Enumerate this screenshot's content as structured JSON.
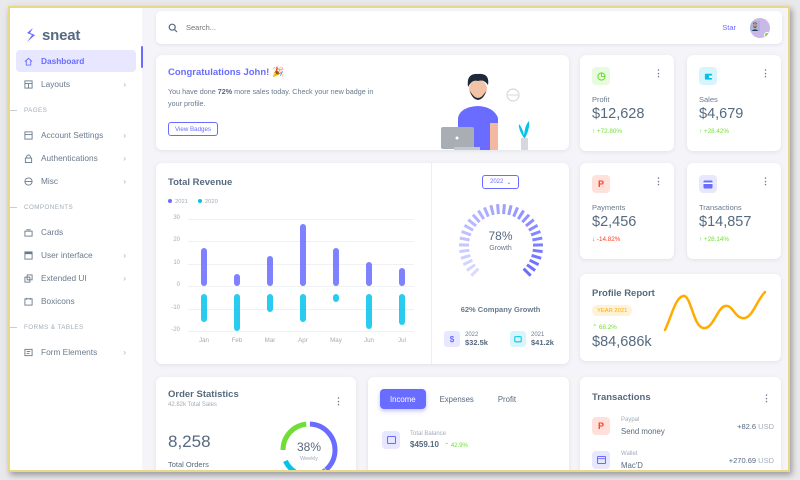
{
  "brand": {
    "name": "sneat"
  },
  "sidebar": {
    "items": [
      {
        "label": "Dashboard",
        "icon": "home-icon",
        "active": true
      },
      {
        "label": "Layouts",
        "icon": "layout-icon",
        "chevron": true
      },
      {
        "header": "PAGES"
      },
      {
        "label": "Account Settings",
        "icon": "dock-icon",
        "chevron": true
      },
      {
        "label": "Authentications",
        "icon": "lock-icon",
        "chevron": true
      },
      {
        "label": "Misc",
        "icon": "cube-icon",
        "chevron": true
      },
      {
        "header": "COMPONENTS"
      },
      {
        "label": "Cards",
        "icon": "collection-icon"
      },
      {
        "label": "User interface",
        "icon": "box-icon",
        "chevron": true
      },
      {
        "label": "Extended UI",
        "icon": "copy-icon",
        "chevron": true
      },
      {
        "label": "Boxicons",
        "icon": "crown-icon"
      },
      {
        "header": "FORMS & TABLES"
      },
      {
        "label": "Form Elements",
        "icon": "detail-icon",
        "chevron": true
      }
    ]
  },
  "navbar": {
    "search_placeholder": "Search...",
    "star_label": "Star"
  },
  "welcome": {
    "title": "Congratulations John! 🎉",
    "text_before": "You have done ",
    "text_bold": "72%",
    "text_after": " more sales today. Check your new badge in your profile.",
    "button": "View Badges"
  },
  "stats": {
    "profit": {
      "label": "Profit",
      "value": "$12,628",
      "change": "+72.80%",
      "direction": "up",
      "color": "#71dd37"
    },
    "sales": {
      "label": "Sales",
      "value": "$4,679",
      "change": "+28.42%",
      "direction": "up",
      "color": "#03c3ec"
    },
    "payments": {
      "label": "Payments",
      "value": "$2,456",
      "change": "-14.82%",
      "direction": "down",
      "color": "#ff3e1d"
    },
    "transactions": {
      "label": "Transactions",
      "value": "$14,857",
      "change": "+28.14%",
      "direction": "up",
      "color": "#696cff"
    }
  },
  "revenue": {
    "title": "Total Revenue",
    "legend": [
      "2021",
      "2020"
    ],
    "year_select": "2022",
    "growth_pct": "78%",
    "growth_label": "Growth",
    "company_growth": "62% Company Growth",
    "mini": [
      {
        "year": "2022",
        "value": "$32.5k"
      },
      {
        "year": "2021",
        "value": "$41.2k"
      }
    ]
  },
  "chart_data": {
    "type": "bar",
    "title": "Total Revenue",
    "categories": [
      "Jan",
      "Feb",
      "Mar",
      "Apr",
      "May",
      "Jun",
      "Jul"
    ],
    "series": [
      {
        "name": "2021",
        "color": "#696cff",
        "values": [
          18,
          7,
          15,
          29,
          18,
          12,
          9
        ]
      },
      {
        "name": "2020",
        "color": "#03c3ec",
        "values": [
          -13,
          -18,
          -9,
          -14,
          -5,
          -17,
          -15
        ]
      }
    ],
    "yticks": [
      "30",
      "20",
      "10",
      "0",
      "-10",
      "-20"
    ],
    "ylim": [
      -20,
      30
    ],
    "grid": true,
    "legend_position": "top-left"
  },
  "profile_report": {
    "title": "Profile Report",
    "badge": "YEAR 2021",
    "change": "68.2%",
    "value": "$84,686k"
  },
  "order_stats": {
    "title": "Order Statistics",
    "subtitle": "42.82k Total Sales",
    "value": "8,258",
    "label": "Total Orders",
    "donut_pct": "38%",
    "donut_label": "Weekly"
  },
  "income": {
    "tabs": [
      "Income",
      "Expenses",
      "Profit"
    ],
    "balance_label": "Total Balance",
    "balance_value": "$459.10",
    "balance_change": "42.9%"
  },
  "transactions": {
    "title": "Transactions",
    "items": [
      {
        "source": "Paypal",
        "title": "Send money",
        "amount": "+82.6",
        "currency": "USD"
      },
      {
        "source": "Wallet",
        "title": "Mac'D",
        "amount": "+270.69",
        "currency": "USD"
      }
    ]
  }
}
